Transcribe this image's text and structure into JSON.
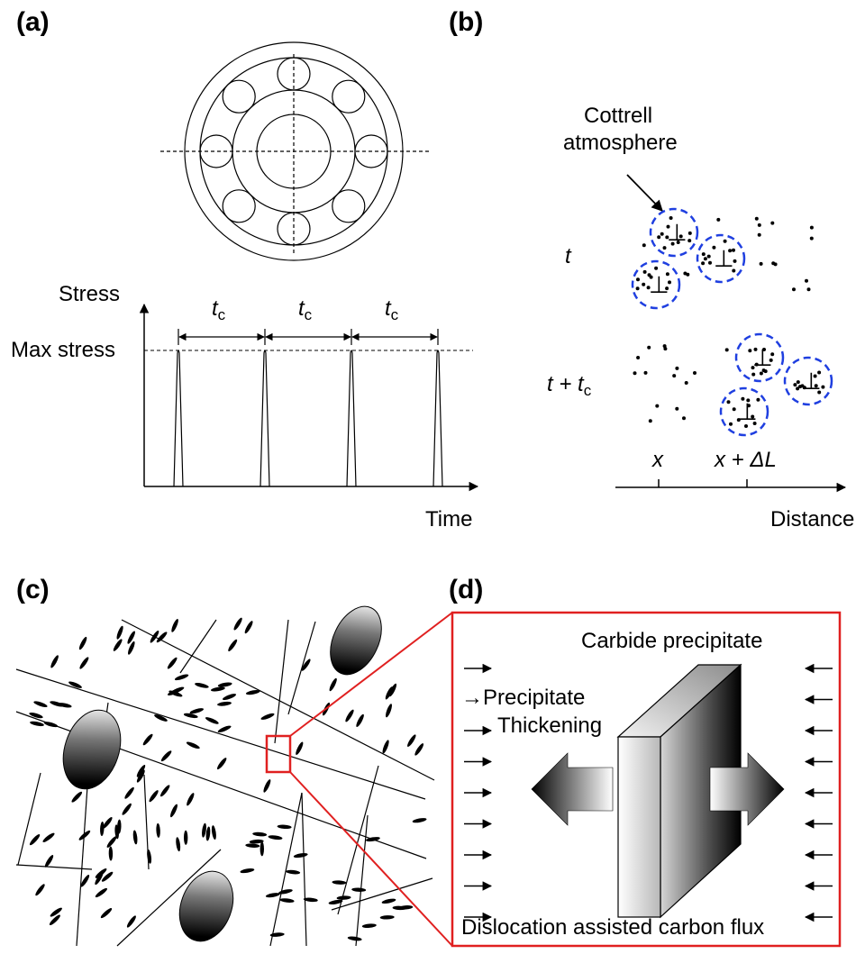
{
  "panels": {
    "a": {
      "label": "(a)",
      "y_axis": "Stress",
      "x_axis": "Time",
      "max_stress": "Max stress",
      "interval_symbol": "t",
      "interval_subscript": "c"
    },
    "b": {
      "label": "(b)",
      "callout_line1": "Cottrell",
      "callout_line2": "atmosphere",
      "row1_time": "t",
      "row2_time_base": "t + t",
      "row2_time_sub": "c",
      "dislocation_symbol": "⊥",
      "pos_x": "x",
      "pos_x_plus": "x + ΔL",
      "x_axis": "Distance",
      "atmosphere_color": "#1f3fe0"
    },
    "c": {
      "label": "(c)"
    },
    "d": {
      "label": "(d)",
      "title": "Carbide precipitate",
      "arrow_prefix": "→",
      "thickening_line1": "Precipitate",
      "thickening_line2": "Thickening",
      "flux_label": "Dislocation assisted carbon flux",
      "frame_color": "#e02020"
    }
  }
}
